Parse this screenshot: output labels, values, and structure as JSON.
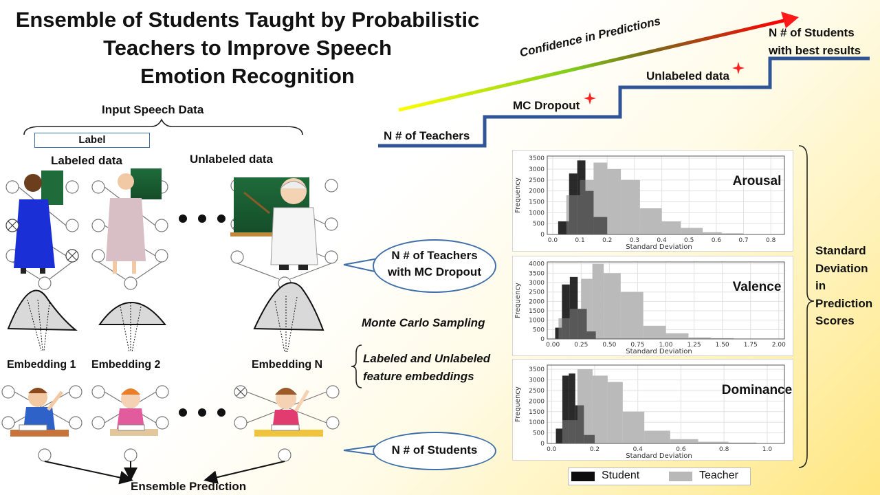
{
  "title": {
    "line1": "Ensemble of Students Taught by Probabilistic",
    "line2": "Teachers to Improve Speech",
    "line3": "Emotion Recognition"
  },
  "input": {
    "heading": "Input Speech Data",
    "label_box": "Label",
    "labeled": "Labeled data",
    "unlabeled": "Unlabeled data"
  },
  "embeddings": [
    "Embedding 1",
    "Embedding 2",
    "Embedding N"
  ],
  "ensemble": "Ensemble Prediction",
  "callouts": {
    "teachers": [
      "N # of Teachers",
      "with MC Dropout"
    ],
    "students": "N # of Students"
  },
  "middle": {
    "mc_sampling": "Monte Carlo Sampling",
    "feat1": "Labeled and Unlabeled",
    "feat2": "feature embeddings"
  },
  "steps": {
    "confidence": "Confidence in Predictions",
    "teachers": "N # of Teachers",
    "mc_dropout": "MC Dropout",
    "unlabeled": "Unlabeled data",
    "best1": "N # of Students",
    "best2": "with best results"
  },
  "side_label": [
    "Standard",
    "Deviation",
    "in",
    "Prediction",
    "Scores"
  ],
  "legend": {
    "student": "Student",
    "teacher": "Teacher",
    "student_color": "#0d0d0d",
    "teacher_color": "#b8b8b8"
  },
  "chart_data": [
    {
      "type": "bar",
      "title": "Arousal",
      "xlabel": "Standard Deviation",
      "ylabel": "Frequency",
      "xlim": [
        -0.02,
        0.85
      ],
      "ylim": [
        0,
        3600
      ],
      "xticks": [
        "0.0",
        "0.1",
        "0.2",
        "0.3",
        "0.4",
        "0.5",
        "0.6",
        "0.7",
        "0.8"
      ],
      "yticks": [
        "0",
        "500",
        "1000",
        "1500",
        "2000",
        "2500",
        "3000",
        "3500"
      ],
      "grid": true,
      "series": [
        {
          "name": "Student",
          "color": "#0d0d0d",
          "bins": [
            [
              0.02,
              0.06,
              600
            ],
            [
              0.06,
              0.09,
              2800
            ],
            [
              0.09,
              0.12,
              3400
            ],
            [
              0.12,
              0.15,
              2000
            ],
            [
              0.15,
              0.2,
              800
            ]
          ]
        },
        {
          "name": "Teacher",
          "color": "#b8b8b8",
          "bins": [
            [
              0.05,
              0.1,
              1800
            ],
            [
              0.1,
              0.15,
              2500
            ],
            [
              0.15,
              0.2,
              3300
            ],
            [
              0.2,
              0.25,
              3000
            ],
            [
              0.25,
              0.32,
              2500
            ],
            [
              0.32,
              0.4,
              1200
            ],
            [
              0.4,
              0.47,
              600
            ],
            [
              0.47,
              0.55,
              300
            ],
            [
              0.55,
              0.62,
              100
            ],
            [
              0.62,
              0.7,
              50
            ]
          ]
        }
      ]
    },
    {
      "type": "bar",
      "title": "Valence",
      "xlabel": "Standard Deviation",
      "ylabel": "Frequency",
      "xlim": [
        -0.05,
        2.05
      ],
      "ylim": [
        0,
        4100
      ],
      "xticks": [
        "0.00",
        "0.25",
        "0.50",
        "0.75",
        "1.00",
        "1.25",
        "1.50",
        "1.75",
        "2.00"
      ],
      "yticks": [
        "0",
        "500",
        "1000",
        "1500",
        "2000",
        "2500",
        "3000",
        "3500",
        "4000"
      ],
      "grid": true,
      "series": [
        {
          "name": "Student",
          "color": "#0d0d0d",
          "bins": [
            [
              0.02,
              0.08,
              600
            ],
            [
              0.08,
              0.15,
              2900
            ],
            [
              0.15,
              0.22,
              3300
            ],
            [
              0.22,
              0.3,
              1600
            ],
            [
              0.3,
              0.38,
              400
            ]
          ]
        },
        {
          "name": "Teacher",
          "color": "#b8b8b8",
          "bins": [
            [
              0.05,
              0.15,
              1100
            ],
            [
              0.15,
              0.25,
              1600
            ],
            [
              0.25,
              0.35,
              3200
            ],
            [
              0.35,
              0.45,
              4000
            ],
            [
              0.45,
              0.6,
              3500
            ],
            [
              0.6,
              0.8,
              2500
            ],
            [
              0.8,
              1.0,
              700
            ],
            [
              1.0,
              1.2,
              300
            ],
            [
              1.2,
              1.4,
              80
            ],
            [
              1.4,
              1.6,
              40
            ]
          ]
        }
      ]
    },
    {
      "type": "bar",
      "title": "Dominance",
      "xlabel": "Standard Deviation",
      "ylabel": "Frequency",
      "xlim": [
        -0.02,
        1.08
      ],
      "ylim": [
        0,
        3700
      ],
      "xticks": [
        "0.0",
        "0.2",
        "0.4",
        "0.6",
        "0.8",
        "1.0"
      ],
      "yticks": [
        "0",
        "500",
        "1000",
        "1500",
        "2000",
        "2500",
        "3000",
        "3500"
      ],
      "grid": true,
      "series": [
        {
          "name": "Student",
          "color": "#0d0d0d",
          "bins": [
            [
              0.02,
              0.05,
              700
            ],
            [
              0.05,
              0.08,
              3200
            ],
            [
              0.08,
              0.11,
              3300
            ],
            [
              0.11,
              0.15,
              1800
            ],
            [
              0.15,
              0.2,
              400
            ]
          ]
        },
        {
          "name": "Teacher",
          "color": "#b8b8b8",
          "bins": [
            [
              0.05,
              0.12,
              1100
            ],
            [
              0.12,
              0.19,
              3500
            ],
            [
              0.19,
              0.26,
              3200
            ],
            [
              0.26,
              0.33,
              2900
            ],
            [
              0.33,
              0.43,
              1500
            ],
            [
              0.43,
              0.55,
              600
            ],
            [
              0.55,
              0.68,
              200
            ],
            [
              0.68,
              0.82,
              80
            ],
            [
              0.82,
              0.95,
              40
            ]
          ]
        }
      ]
    }
  ]
}
